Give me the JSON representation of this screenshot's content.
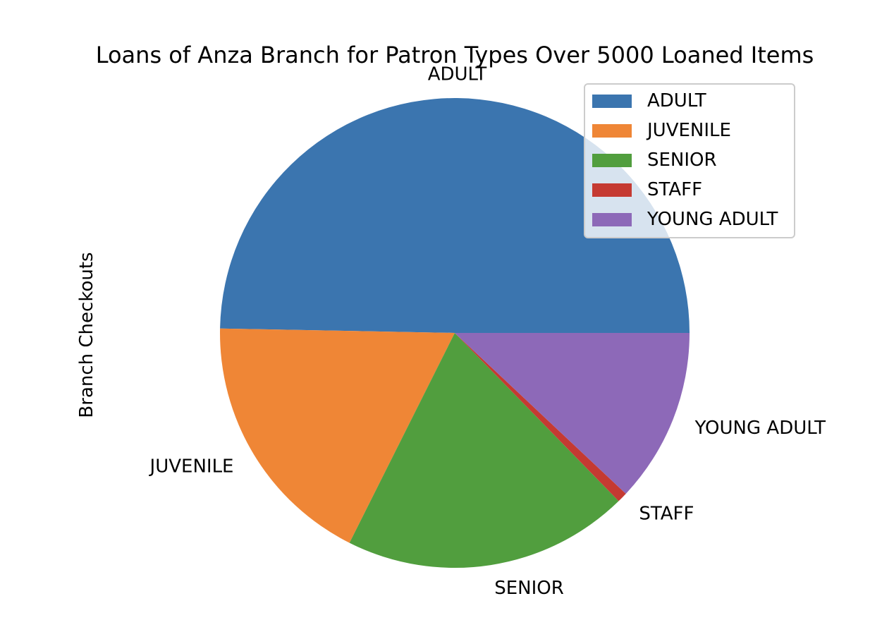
{
  "chart_data": {
    "type": "pie",
    "title": "Loans of Anza Branch for Patron Types Over 5000 Loaned Items",
    "ylabel": "Branch Checkouts",
    "categories": [
      "ADULT",
      "JUVENILE",
      "SENIOR",
      "STAFF",
      "YOUNG ADULT"
    ],
    "values": [
      49.7,
      17.9,
      19.7,
      0.7,
      12.0
    ],
    "colors": [
      "#3b75af",
      "#ef8636",
      "#519e3e",
      "#c53a32",
      "#8d69b8"
    ],
    "start_angle_deg": 0,
    "direction": "counterclockwise",
    "legend": {
      "position": "top-right",
      "entries": [
        "ADULT",
        "JUVENILE",
        "SENIOR",
        "STAFF",
        "YOUNG ADULT"
      ]
    }
  }
}
